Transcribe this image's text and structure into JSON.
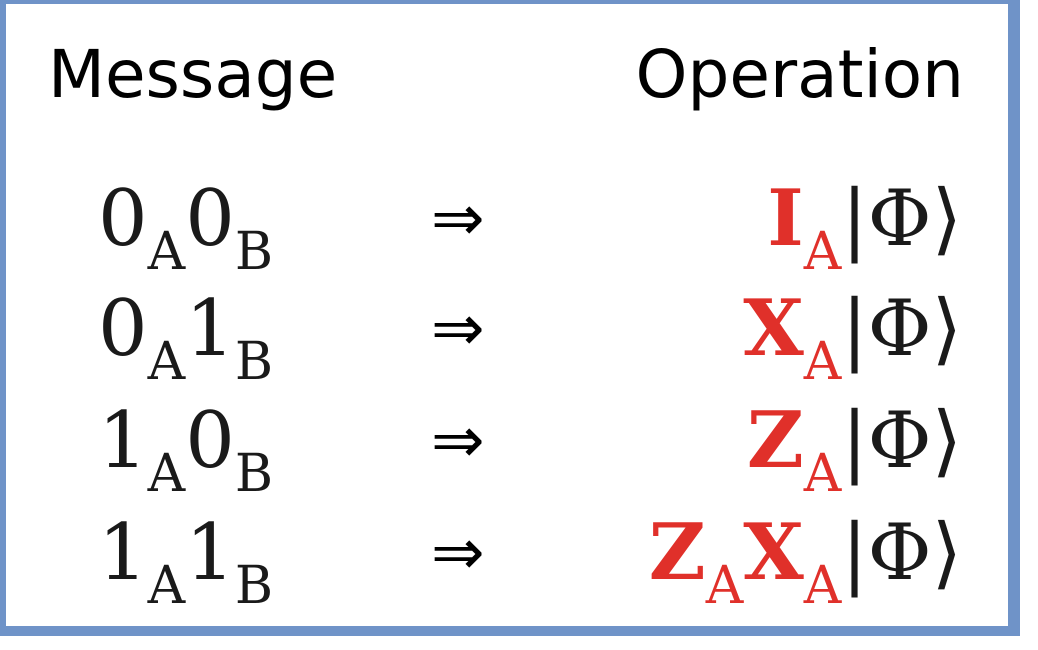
{
  "header": {
    "message_label": "Message",
    "operation_label": "Operation"
  },
  "rows": [
    {
      "bits": [
        {
          "v": "0",
          "s": "A"
        },
        {
          "v": "0",
          "s": "B"
        }
      ],
      "arrow": "⇒",
      "gates": [
        {
          "g": "I",
          "s": "A"
        }
      ],
      "state": "|Φ⟩"
    },
    {
      "bits": [
        {
          "v": "0",
          "s": "A"
        },
        {
          "v": "1",
          "s": "B"
        }
      ],
      "arrow": "⇒",
      "gates": [
        {
          "g": "X",
          "s": "A"
        }
      ],
      "state": "|Φ⟩"
    },
    {
      "bits": [
        {
          "v": "1",
          "s": "A"
        },
        {
          "v": "0",
          "s": "B"
        }
      ],
      "arrow": "⇒",
      "gates": [
        {
          "g": "Z",
          "s": "A"
        }
      ],
      "state": "|Φ⟩"
    },
    {
      "bits": [
        {
          "v": "1",
          "s": "A"
        },
        {
          "v": "1",
          "s": "B"
        }
      ],
      "arrow": "⇒",
      "gates": [
        {
          "g": "Z",
          "s": "A"
        },
        {
          "g": "X",
          "s": "A"
        }
      ],
      "state": "|Φ⟩"
    }
  ],
  "colors": {
    "border": "#6f93c8",
    "gate": "#e0302a",
    "text": "#1a1a1a"
  }
}
